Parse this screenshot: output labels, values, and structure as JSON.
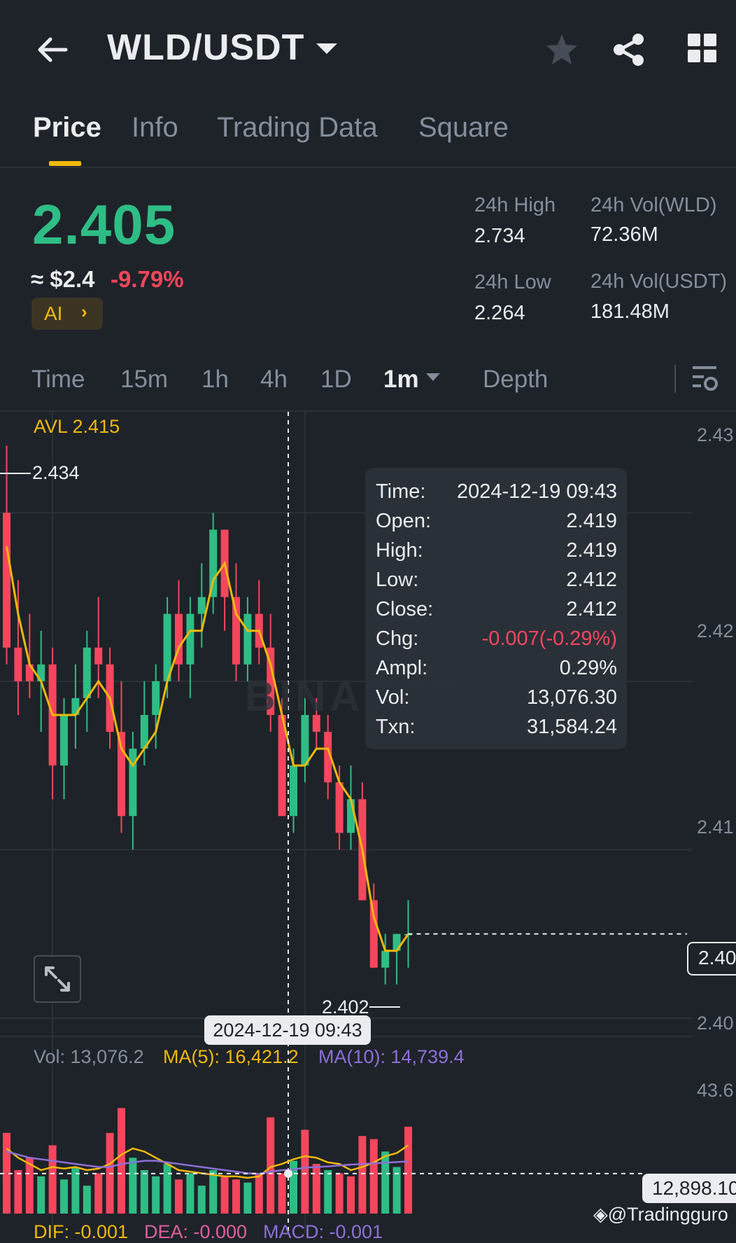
{
  "header": {
    "pair": "WLD/USDT",
    "icons": [
      "back-arrow-icon",
      "chevron-down-icon",
      "star-icon",
      "share-icon",
      "grid-icon"
    ]
  },
  "tabs": [
    "Price",
    "Info",
    "Trading Data",
    "Square"
  ],
  "active_tab": "Price",
  "price": {
    "last": "2.405",
    "usd": "≈ $2.4",
    "change_pct": "-9.79%",
    "ai_label": "AI"
  },
  "stats": {
    "high_label": "24h High",
    "high": "2.734",
    "vol_wld_label": "24h Vol(WLD)",
    "vol_wld": "72.36M",
    "low_label": "24h Low",
    "low": "2.264",
    "vol_usdt_label": "24h Vol(USDT)",
    "vol_usdt": "181.48M"
  },
  "intervals": [
    "Time",
    "15m",
    "1h",
    "4h",
    "1D",
    "1m",
    "Depth"
  ],
  "active_interval": "1m",
  "chart": {
    "avl": "AVL 2.415",
    "y_labels": [
      "2.43",
      "2.42",
      "2.41",
      "2.40"
    ],
    "high_marker": "2.434",
    "low_marker": "2.402",
    "crosshair_time": "2024-12-19 09:43",
    "current_price": "2.40",
    "vol_axis_top": "43.6",
    "vol_current": "12,898.10",
    "watermark": "@Tradingguro",
    "exchange_watermark": "BINANCE"
  },
  "tooltip": {
    "rows": [
      {
        "k": "Time:",
        "v": "2024-12-19 09:43"
      },
      {
        "k": "Open:",
        "v": "2.419"
      },
      {
        "k": "High:",
        "v": "2.419"
      },
      {
        "k": "Low:",
        "v": "2.412"
      },
      {
        "k": "Close:",
        "v": "2.412"
      },
      {
        "k": "Chg:",
        "v": "-0.007(-0.29%)"
      },
      {
        "k": "Ampl:",
        "v": "0.29%"
      },
      {
        "k": "Vol:",
        "v": "13,076.30"
      },
      {
        "k": "Txn:",
        "v": "31,584.24"
      }
    ]
  },
  "volume_legend": {
    "vol": "Vol: 13,076.2",
    "ma5": "MA(5): 16,421.2",
    "ma10": "MA(10): 14,739.4"
  },
  "macd_legend": {
    "dif": "DIF: -0.001",
    "dea": "DEA: -0.000",
    "macd": "MACD: -0.001"
  },
  "colors": {
    "up": "#2ebd85",
    "down": "#f6465d",
    "accent": "#f0b90b",
    "ma10": "#8e6fd8",
    "bg": "#1e2329",
    "muted": "#848e9c"
  },
  "chart_data": {
    "type": "candlestick",
    "interval": "1m",
    "price_ylim": [
      2.399,
      2.436
    ],
    "candles": [
      {
        "o": 2.43,
        "h": 2.434,
        "l": 2.421,
        "c": 2.422
      },
      {
        "o": 2.422,
        "h": 2.426,
        "l": 2.418,
        "c": 2.42
      },
      {
        "o": 2.421,
        "h": 2.424,
        "l": 2.419,
        "c": 2.42
      },
      {
        "o": 2.42,
        "h": 2.423,
        "l": 2.417,
        "c": 2.421
      },
      {
        "o": 2.421,
        "h": 2.422,
        "l": 2.413,
        "c": 2.415
      },
      {
        "o": 2.415,
        "h": 2.419,
        "l": 2.413,
        "c": 2.418
      },
      {
        "o": 2.418,
        "h": 2.421,
        "l": 2.416,
        "c": 2.419
      },
      {
        "o": 2.419,
        "h": 2.423,
        "l": 2.417,
        "c": 2.422
      },
      {
        "o": 2.422,
        "h": 2.425,
        "l": 2.419,
        "c": 2.421
      },
      {
        "o": 2.421,
        "h": 2.422,
        "l": 2.416,
        "c": 2.417
      },
      {
        "o": 2.417,
        "h": 2.42,
        "l": 2.411,
        "c": 2.412
      },
      {
        "o": 2.412,
        "h": 2.417,
        "l": 2.41,
        "c": 2.416
      },
      {
        "o": 2.416,
        "h": 2.42,
        "l": 2.415,
        "c": 2.418
      },
      {
        "o": 2.418,
        "h": 2.421,
        "l": 2.416,
        "c": 2.42
      },
      {
        "o": 2.42,
        "h": 2.425,
        "l": 2.419,
        "c": 2.424
      },
      {
        "o": 2.424,
        "h": 2.426,
        "l": 2.42,
        "c": 2.421
      },
      {
        "o": 2.421,
        "h": 2.425,
        "l": 2.419,
        "c": 2.424
      },
      {
        "o": 2.424,
        "h": 2.427,
        "l": 2.422,
        "c": 2.425
      },
      {
        "o": 2.425,
        "h": 2.43,
        "l": 2.424,
        "c": 2.429
      },
      {
        "o": 2.429,
        "h": 2.429,
        "l": 2.423,
        "c": 2.425
      },
      {
        "o": 2.425,
        "h": 2.427,
        "l": 2.42,
        "c": 2.421
      },
      {
        "o": 2.421,
        "h": 2.425,
        "l": 2.42,
        "c": 2.424
      },
      {
        "o": 2.424,
        "h": 2.426,
        "l": 2.421,
        "c": 2.422
      },
      {
        "o": 2.422,
        "h": 2.424,
        "l": 2.417,
        "c": 2.418
      },
      {
        "o": 2.418,
        "h": 2.419,
        "l": 2.412,
        "c": 2.412
      },
      {
        "o": 2.412,
        "h": 2.416,
        "l": 2.411,
        "c": 2.415
      },
      {
        "o": 2.415,
        "h": 2.419,
        "l": 2.414,
        "c": 2.418
      },
      {
        "o": 2.418,
        "h": 2.419,
        "l": 2.416,
        "c": 2.417
      },
      {
        "o": 2.417,
        "h": 2.418,
        "l": 2.413,
        "c": 2.414
      },
      {
        "o": 2.414,
        "h": 2.415,
        "l": 2.41,
        "c": 2.411
      },
      {
        "o": 2.411,
        "h": 2.415,
        "l": 2.41,
        "c": 2.413
      },
      {
        "o": 2.413,
        "h": 2.414,
        "l": 2.407,
        "c": 2.407
      },
      {
        "o": 2.407,
        "h": 2.408,
        "l": 2.403,
        "c": 2.403
      },
      {
        "o": 2.403,
        "h": 2.405,
        "l": 2.402,
        "c": 2.404
      },
      {
        "o": 2.404,
        "h": 2.405,
        "l": 2.402,
        "c": 2.405
      },
      {
        "o": 2.405,
        "h": 2.407,
        "l": 2.403,
        "c": 2.405
      }
    ],
    "ma_line": [
      2.428,
      2.424,
      2.421,
      2.42,
      2.418,
      2.418,
      2.418,
      2.419,
      2.42,
      2.419,
      2.416,
      2.415,
      2.416,
      2.417,
      2.42,
      2.422,
      2.423,
      2.423,
      2.426,
      2.427,
      2.424,
      2.423,
      2.423,
      2.421,
      2.418,
      2.415,
      2.415,
      2.416,
      2.416,
      2.414,
      2.413,
      2.41,
      2.406,
      2.404,
      2.404,
      2.405
    ],
    "volume": [
      26000,
      14000,
      18000,
      12000,
      22000,
      11000,
      15000,
      9000,
      13000,
      26000,
      34000,
      18000,
      14000,
      12000,
      16000,
      11000,
      13000,
      9000,
      14000,
      12000,
      11000,
      10000,
      13000,
      31000,
      13000,
      17000,
      27000,
      16000,
      14000,
      13000,
      12000,
      25000,
      24000,
      20000,
      15000,
      28000
    ],
    "volume_up": [
      false,
      false,
      false,
      true,
      false,
      true,
      true,
      true,
      false,
      false,
      false,
      true,
      true,
      true,
      true,
      false,
      true,
      true,
      true,
      false,
      false,
      true,
      false,
      false,
      false,
      true,
      false,
      false,
      true,
      false,
      false,
      false,
      false,
      true,
      true,
      false
    ],
    "vol_ma5": [
      21000,
      18000,
      16000,
      14000,
      15000,
      14500,
      15000,
      14000,
      14500,
      16000,
      19000,
      21000,
      20000,
      18000,
      16000,
      14000,
      13500,
      13000,
      12500,
      12000,
      12000,
      11500,
      12000,
      15000,
      16000,
      17500,
      18500,
      18000,
      16500,
      16000,
      14000,
      15000,
      16500,
      18500,
      19500,
      22000
    ],
    "vol_ma10": [
      20000,
      19000,
      18000,
      17500,
      17000,
      16500,
      16000,
      15500,
      15000,
      15000,
      16000,
      16500,
      17000,
      17000,
      16500,
      16000,
      15500,
      15000,
      14500,
      14000,
      13500,
      13000,
      12800,
      13500,
      14000,
      14200,
      14800,
      15000,
      15200,
      15500,
      15800,
      16000,
      16200,
      16400,
      16600,
      16800
    ]
  }
}
